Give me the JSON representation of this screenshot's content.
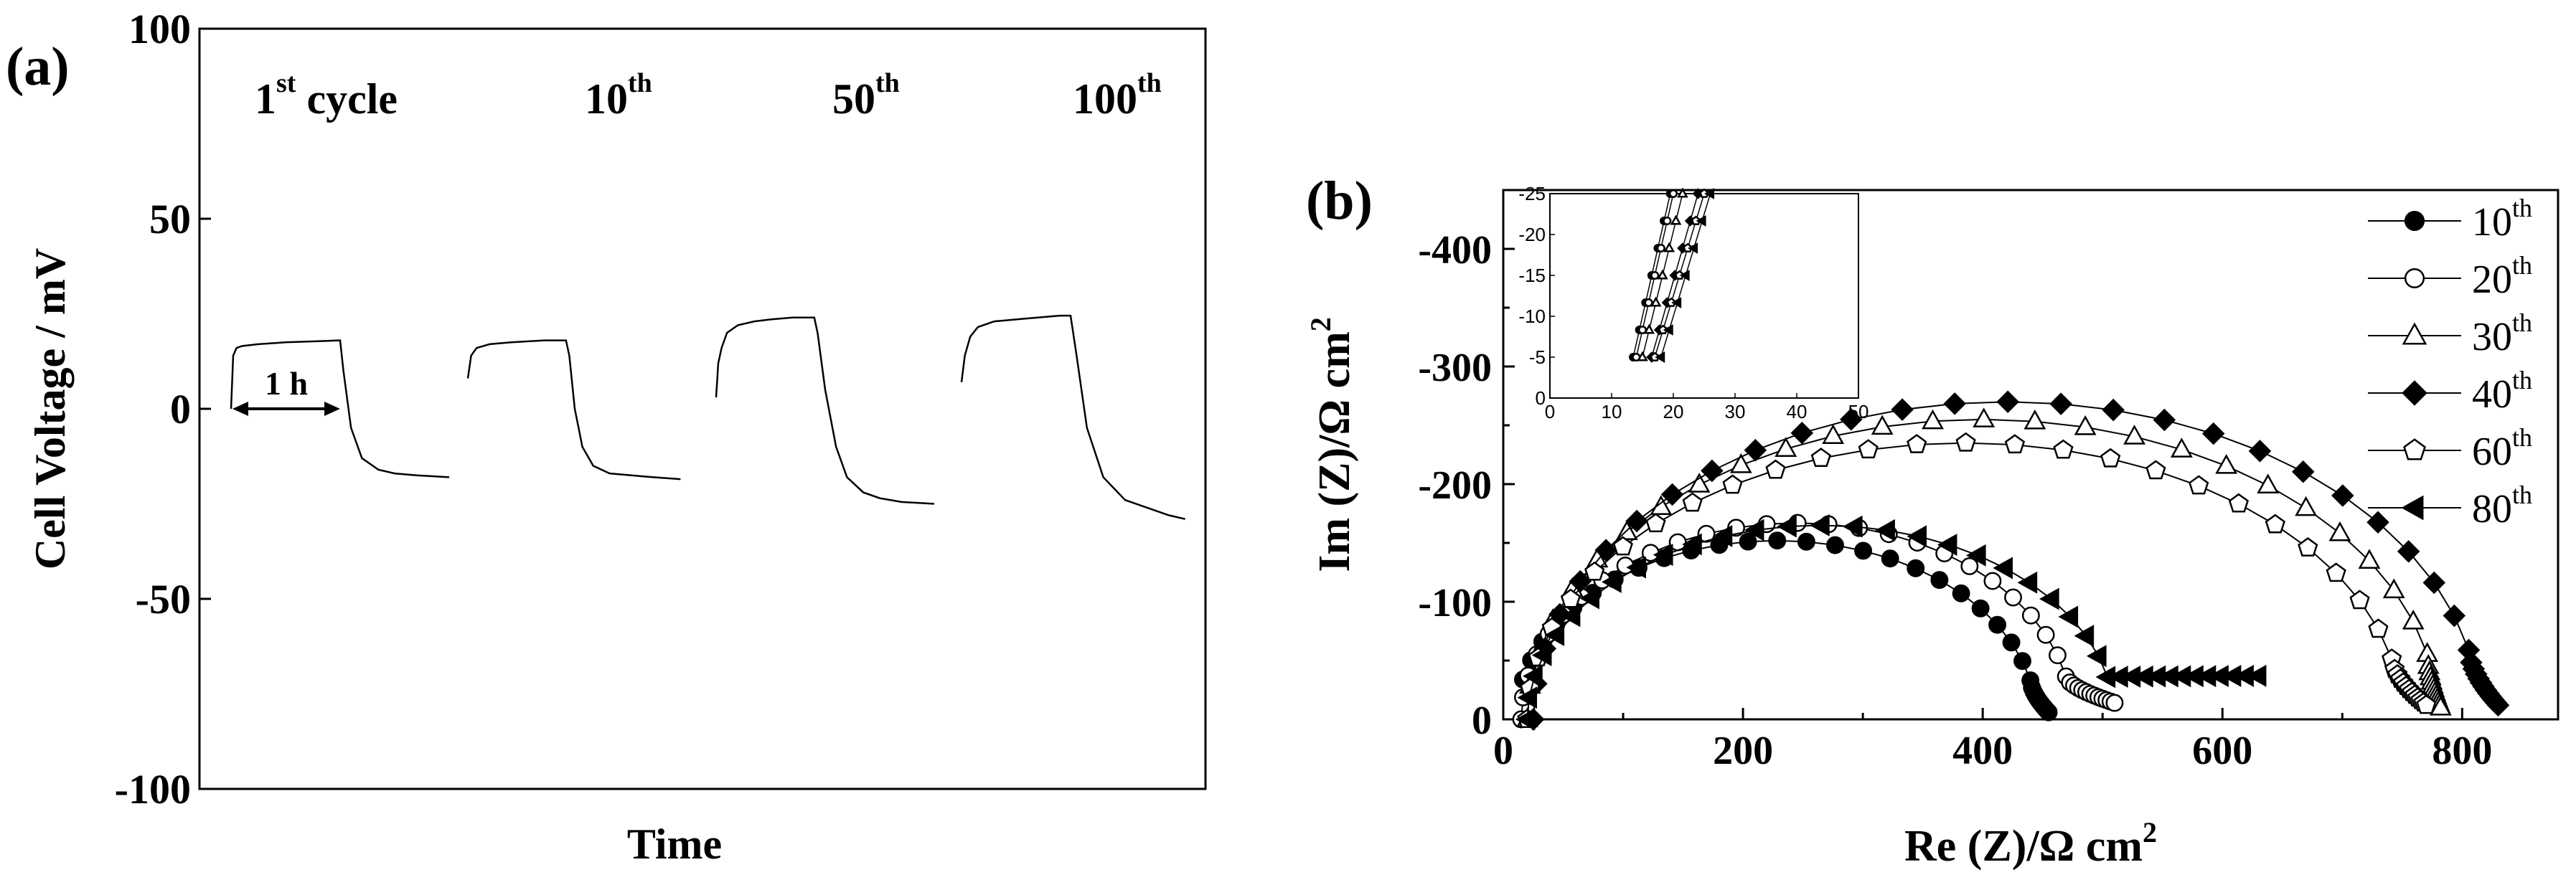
{
  "chart_data": [
    {
      "type": "line",
      "panel": "(a)",
      "xlabel": "Time",
      "ylabel": "Cell Voltage / mV",
      "ylim": [
        -100,
        100
      ],
      "yticks": [
        "100",
        "50",
        "0",
        "-50",
        "-100"
      ],
      "grid": false,
      "cycle_labels": [
        {
          "main": "1",
          "sup": "st",
          "suffix": " cycle"
        },
        {
          "main": "10",
          "sup": "th",
          "suffix": ""
        },
        {
          "main": "50",
          "sup": "th",
          "suffix": ""
        },
        {
          "main": "100",
          "sup": "th",
          "suffix": ""
        }
      ],
      "annotation": "1 h",
      "series": [
        {
          "x": [
            0,
            0.02,
            0.05,
            0.1,
            0.25,
            0.5,
            0.8,
            1.0,
            1.03,
            1.1,
            1.2,
            1.35,
            1.5,
            1.7,
            2.0
          ],
          "y": [
            0,
            14,
            16,
            16.5,
            17,
            17.5,
            17.8,
            18,
            10,
            -5,
            -13,
            -16,
            -17,
            -17.5,
            -18
          ]
        },
        {
          "x": [
            0,
            0.03,
            0.08,
            0.2,
            0.4,
            0.7,
            0.9,
            0.93,
            0.98,
            1.05,
            1.15,
            1.3,
            1.5,
            1.7,
            1.95
          ],
          "y": [
            8,
            14,
            16,
            17,
            17.5,
            18,
            18,
            14,
            0,
            -10,
            -15,
            -17,
            -17.5,
            -18,
            -18.5
          ]
        },
        {
          "x": [
            0,
            0.02,
            0.05,
            0.1,
            0.2,
            0.35,
            0.5,
            0.7,
            0.9,
            0.93,
            1.0,
            1.1,
            1.2,
            1.35,
            1.5,
            1.7,
            2.0
          ],
          "y": [
            3,
            12,
            16,
            20,
            22,
            23,
            23.5,
            24,
            24,
            20,
            5,
            -10,
            -18,
            -22,
            -23.5,
            -24.5,
            -25
          ]
        },
        {
          "x": [
            0,
            0.03,
            0.08,
            0.15,
            0.3,
            0.5,
            0.7,
            0.9,
            1.0,
            1.05,
            1.15,
            1.3,
            1.5,
            1.7,
            1.9,
            2.05
          ],
          "y": [
            7,
            14,
            19,
            21.5,
            23,
            23.5,
            24,
            24.5,
            24.5,
            15,
            -5,
            -18,
            -24,
            -26,
            -28,
            -29
          ]
        }
      ]
    },
    {
      "type": "scatter",
      "panel": "(b)",
      "xlabel_main": "Re (Z)/Ω cm",
      "xlabel_sup": "2",
      "ylabel_main": "Im (Z)/Ω cm",
      "ylabel_sup": "2",
      "xlim": [
        0,
        880
      ],
      "ylim": [
        0,
        -450
      ],
      "xticks": [
        "0",
        "200",
        "400",
        "600",
        "800"
      ],
      "yticks": [
        "0",
        "-100",
        "-200",
        "-300",
        "-400"
      ],
      "grid": false,
      "legend_position": "top-right",
      "legend": [
        {
          "main": "10",
          "sup": "th"
        },
        {
          "main": "20",
          "sup": "th"
        },
        {
          "main": "30",
          "sup": "th"
        },
        {
          "main": "40",
          "sup": "th"
        },
        {
          "main": "60",
          "sup": "th"
        },
        {
          "main": "80",
          "sup": "th"
        }
      ],
      "series": [
        {
          "marker": "circle-filled",
          "center": 228,
          "radius": 217,
          "ymax": 152,
          "x0": 14,
          "tail_x_end": 455,
          "tail_y": 6
        },
        {
          "marker": "circle-open",
          "center": 245,
          "radius": 230,
          "ymax": 167,
          "x0": 15,
          "tail_x_end": 510,
          "tail_y": 14
        },
        {
          "marker": "triangle-up-open",
          "center": 400,
          "radius": 380,
          "ymax": 255,
          "x0": 20,
          "tail_x_end": 782,
          "tail_y": 10
        },
        {
          "marker": "diamond-filled",
          "center": 420,
          "radius": 395,
          "ymax": 270,
          "x0": 22,
          "tail_x_end": 830,
          "tail_y": 12
        },
        {
          "marker": "pentagon-open",
          "center": 385,
          "radius": 365,
          "ymax": 235,
          "x0": 20,
          "tail_x_end": 770,
          "tail_y": 12
        },
        {
          "marker": "triangle-left-filled",
          "center": 265,
          "radius": 245,
          "ymax": 165,
          "x0": 18,
          "tail_x_end": 630,
          "tail_y": 37
        }
      ],
      "inset": {
        "xlim": [
          0,
          50
        ],
        "ylim": [
          0,
          -25
        ],
        "xticks": [
          "0",
          "10",
          "20",
          "30",
          "40",
          "50"
        ],
        "yticks": [
          "0",
          "-5",
          "-10",
          "-15",
          "-20",
          "-25"
        ],
        "lines": [
          {
            "x": [
              13.5,
              19.5
            ],
            "y": [
              -5,
              -25
            ]
          },
          {
            "x": [
              14,
              20
            ],
            "y": [
              -5,
              -25
            ]
          },
          {
            "x": [
              15,
              21.5
            ],
            "y": [
              -5,
              -25
            ]
          },
          {
            "x": [
              16.5,
              24
            ],
            "y": [
              -5,
              -25
            ]
          },
          {
            "x": [
              17,
              25
            ],
            "y": [
              -5,
              -25
            ]
          },
          {
            "x": [
              18,
              26
            ],
            "y": [
              -5,
              -25
            ]
          }
        ]
      }
    }
  ]
}
